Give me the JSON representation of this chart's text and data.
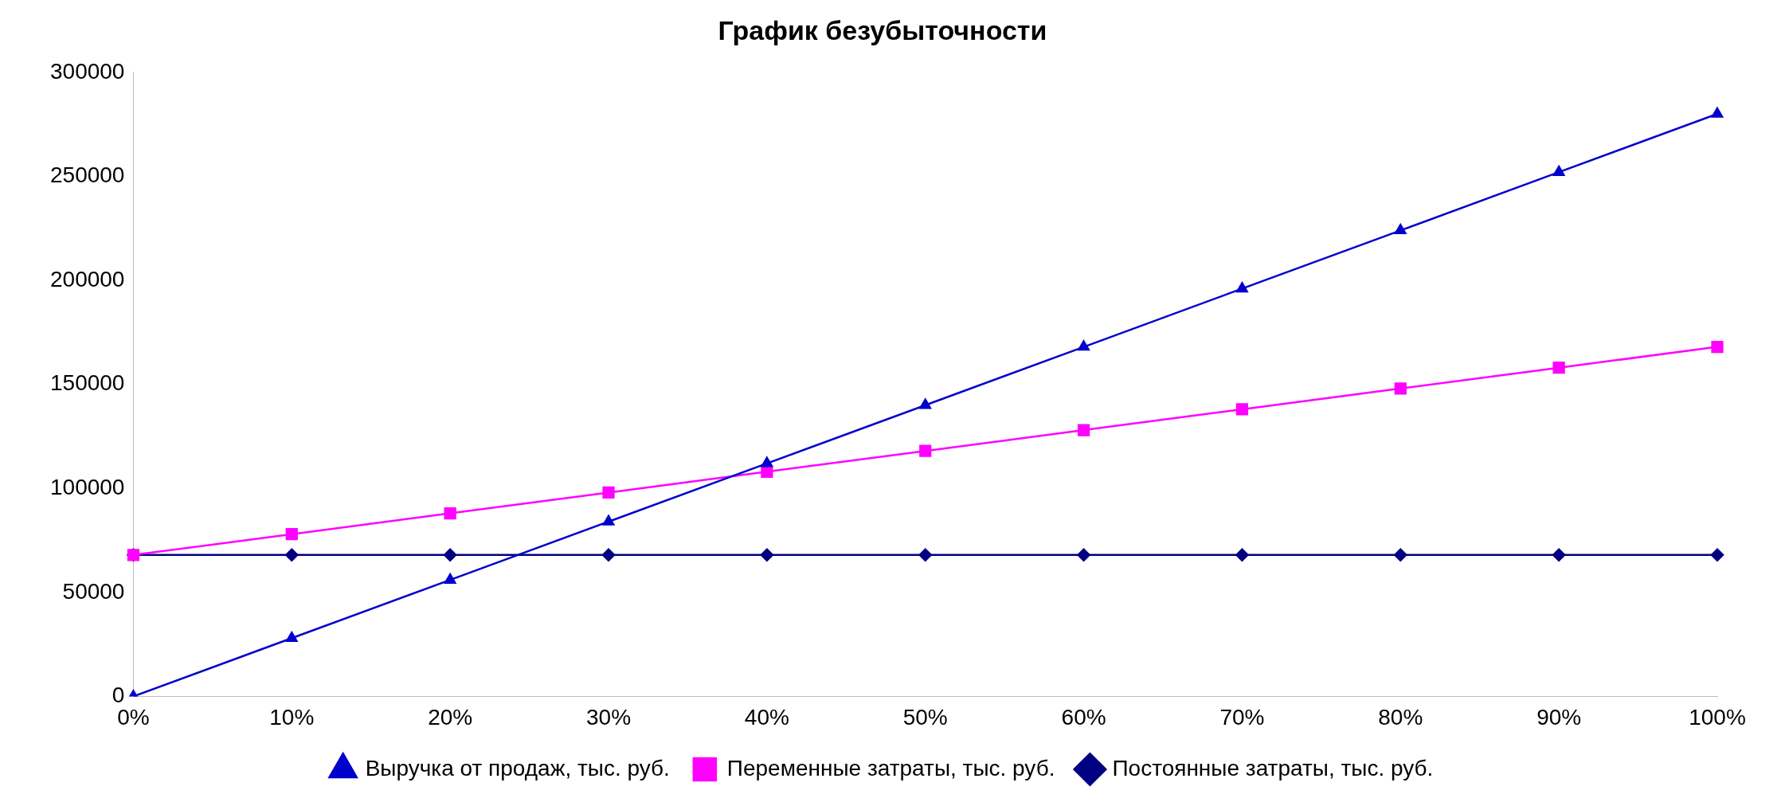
{
  "chart_data": {
    "type": "line",
    "title": "График безубыточности",
    "categories": [
      "0%",
      "10%",
      "20%",
      "30%",
      "40%",
      "50%",
      "60%",
      "70%",
      "80%",
      "90%",
      "100%"
    ],
    "series": [
      {
        "name": "Постоянные затраты, тыс. руб.",
        "color": "#000080",
        "marker": "diamond",
        "values": [
          68000,
          68000,
          68000,
          68000,
          68000,
          68000,
          68000,
          68000,
          68000,
          68000,
          68000
        ]
      },
      {
        "name": "Переменные затраты, тыс. руб.",
        "color": "#ff00ff",
        "marker": "square",
        "values": [
          68000,
          78000,
          88000,
          98000,
          108000,
          118000,
          128000,
          138000,
          148000,
          158000,
          168000
        ]
      },
      {
        "name": "Выручка от продаж, тыс. руб.",
        "color": "#0000cc",
        "marker": "triangle",
        "values": [
          0,
          28000,
          56000,
          84000,
          112000,
          140000,
          168000,
          196000,
          224000,
          252000,
          280000
        ]
      }
    ],
    "ylim": [
      0,
      300000
    ],
    "yticks": [
      0,
      50000,
      100000,
      150000,
      200000,
      250000,
      300000
    ],
    "grid": false,
    "legend": "bottom"
  }
}
